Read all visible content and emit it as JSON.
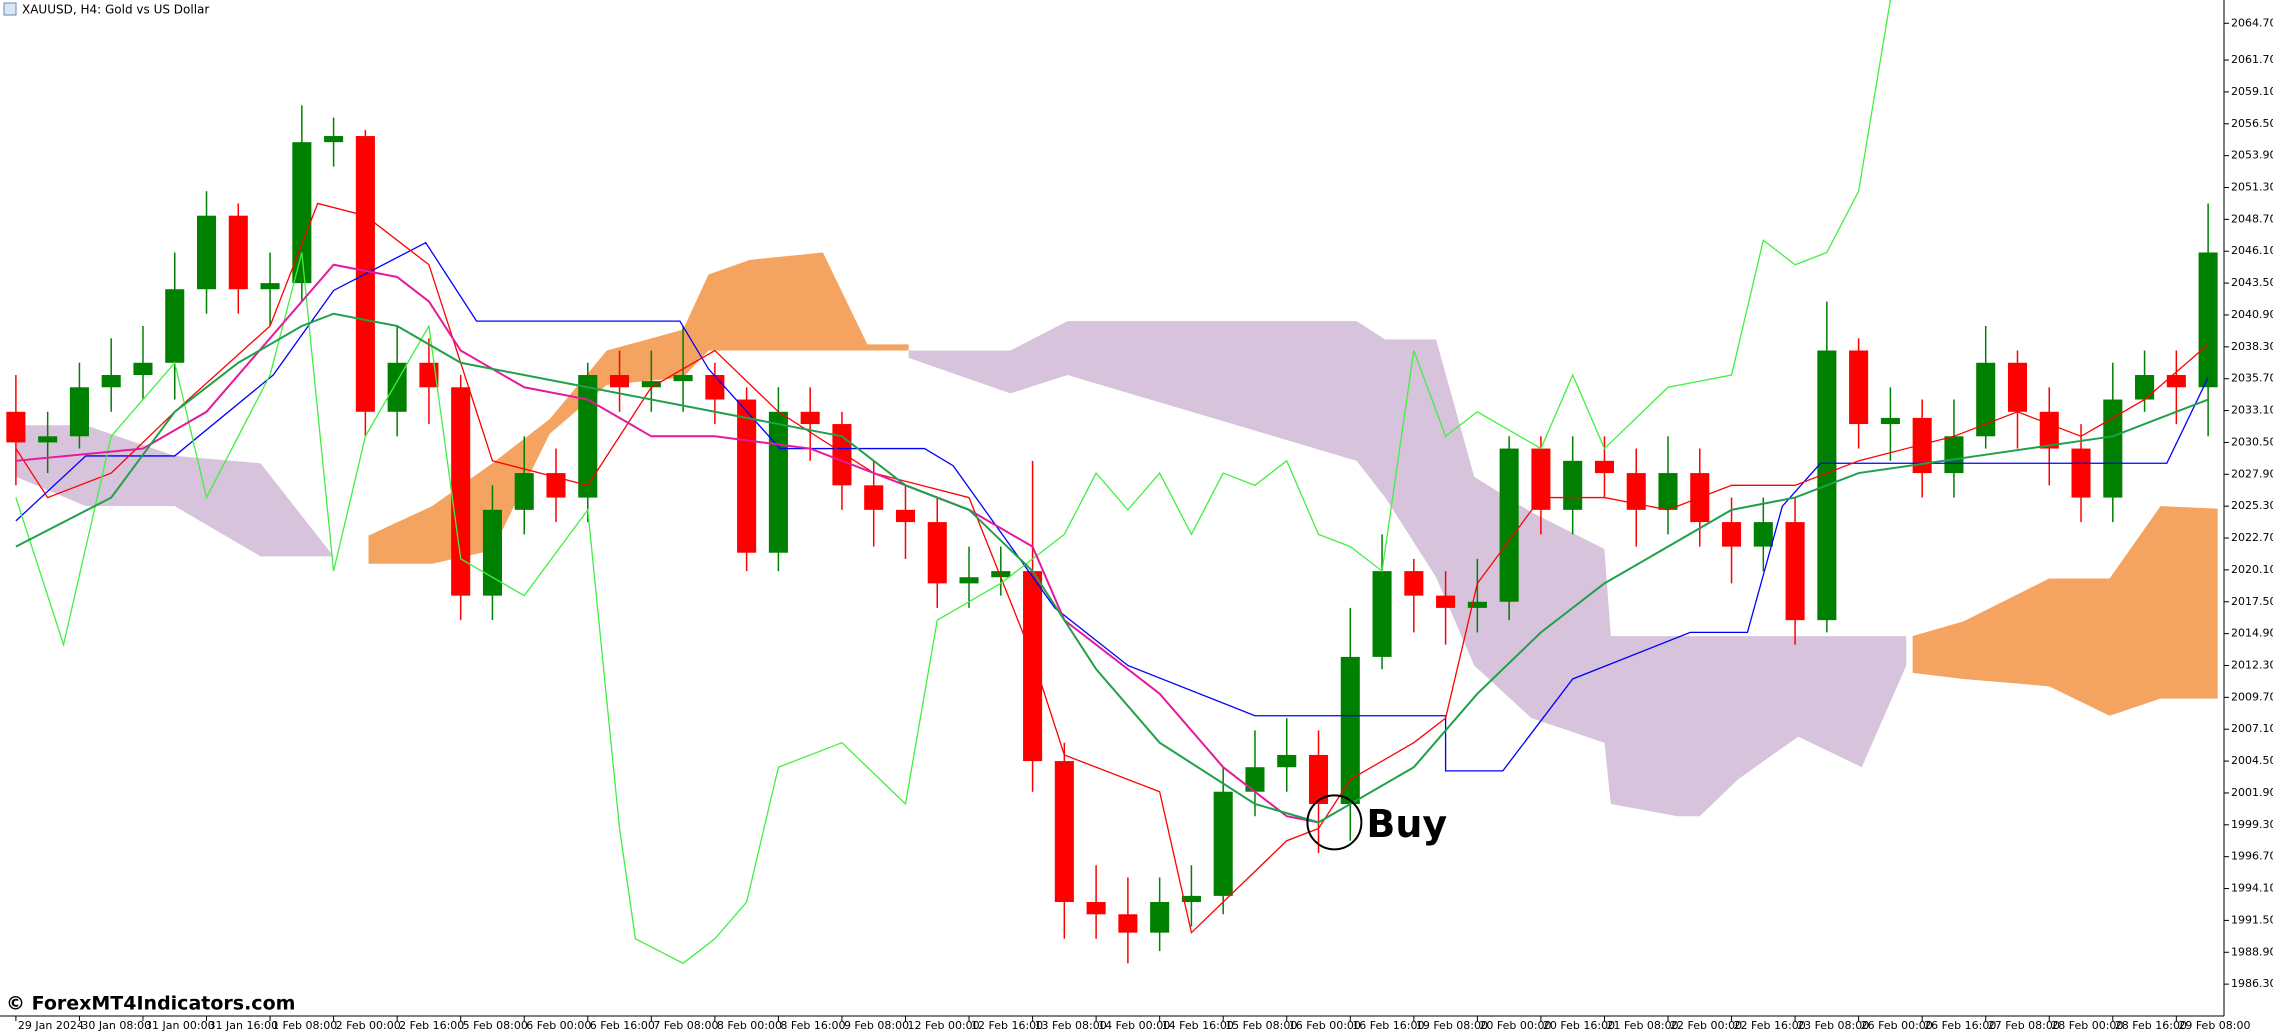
{
  "chart_data": {
    "type": "candlestick",
    "title": "XAUUSD, H4:  Gold vs US Dollar",
    "up_color": "#008000",
    "down_color": "#ff0000",
    "open": [
      2033,
      2030.5,
      2031,
      2035,
      2036,
      2037,
      2043,
      2049,
      2043,
      2043.5,
      2055,
      2055.5,
      2033,
      2037,
      2035,
      2018,
      2025,
      2028,
      2026,
      2036,
      2035,
      2035.5,
      2036,
      2034,
      2021.5,
      2033,
      2032,
      2027,
      2025,
      2024,
      2019,
      2019.5,
      2020,
      2004.5,
      1993,
      1992,
      1990.5,
      1993,
      1993.5,
      2002,
      2004,
      2005,
      2001,
      2013,
      2020,
      2018,
      2017,
      2017.5,
      2030,
      2025,
      2029,
      2028,
      2025,
      2028,
      2024,
      2022,
      2024,
      2016,
      2038,
      2032,
      2032.5,
      2028,
      2031,
      2037,
      2033,
      2030,
      2026,
      2034,
      2036,
      2035
    ],
    "high": [
      2036,
      2033,
      2037,
      2039,
      2040,
      2046,
      2051,
      2050,
      2046,
      2058,
      2057,
      2056,
      2040,
      2039,
      2036,
      2027,
      2031,
      2030,
      2037,
      2038,
      2038,
      2040,
      2037,
      2035,
      2035,
      2035,
      2033,
      2029,
      2027,
      2026,
      2022,
      2022,
      2029,
      2006,
      1996,
      1995,
      1995,
      1996,
      2004,
      2007,
      2008,
      2007,
      2017,
      2023,
      2021,
      2020,
      2021,
      2031,
      2031,
      2031,
      2031,
      2030,
      2031,
      2030,
      2026,
      2026,
      2026,
      2042,
      2039,
      2035,
      2034,
      2034,
      2040,
      2038,
      2035,
      2032,
      2037,
      2038,
      2038,
      2050
    ],
    "low": [
      2027,
      2028,
      2030,
      2033,
      2034,
      2034,
      2041,
      2041,
      2040,
      2042,
      2053,
      2031,
      2031,
      2032,
      2016,
      2016,
      2023,
      2024,
      2024,
      2033,
      2033,
      2033,
      2032,
      2020,
      2020,
      2029,
      2025,
      2022,
      2021,
      2017,
      2017,
      2018,
      2002,
      1990,
      1990,
      1988,
      1989,
      1991,
      1992,
      2000,
      2002,
      1997,
      1998,
      2012,
      2015,
      2014,
      2015,
      2016,
      2023,
      2023,
      2026,
      2022,
      2023,
      2022,
      2019,
      2020,
      2014,
      2015,
      2030,
      2029,
      2026,
      2026,
      2030,
      2030,
      2027,
      2024,
      2024,
      2033,
      2032,
      2031
    ],
    "close": [
      2030.5,
      2031,
      2035,
      2036,
      2037,
      2043,
      2049,
      2043,
      2043.5,
      2055,
      2055.5,
      2033,
      2037,
      2035,
      2018,
      2025,
      2028,
      2026,
      2036,
      2035,
      2035.5,
      2036,
      2034,
      2021.5,
      2033,
      2032,
      2027,
      2025,
      2024,
      2019,
      2019.5,
      2020,
      2004.5,
      1993,
      1992,
      1990.5,
      1993,
      1993.5,
      2002,
      2004,
      2005,
      2001,
      2013,
      2020,
      2018,
      2017,
      2017.5,
      2030,
      2025,
      2029,
      2028,
      2025,
      2028,
      2024,
      2022,
      2024,
      2016,
      2038,
      2032,
      2032.5,
      2028,
      2031,
      2037,
      2033,
      2030,
      2026,
      2034,
      2036,
      2035,
      2046
    ],
    "clouds": [
      {
        "color": "#d8c3dc",
        "x": [
          0,
          2.2,
          5,
          7.7,
          10
        ],
        "upper": [
          2031.9,
          2031.9,
          2029.4,
          2028.8,
          2021.2
        ],
        "lower": [
          2027.7,
          2025.3,
          2025.3,
          2021.2,
          2021.2
        ]
      },
      {
        "color": "#f4a460",
        "x": [
          11.1,
          13.1,
          15,
          16.8,
          18.6,
          21,
          21.8,
          23.1,
          25.4,
          26.8,
          28.1
        ],
        "upper": [
          2022.9,
          2025.3,
          2028.8,
          2032.4,
          2038,
          2039.7,
          2044.2,
          2045.4,
          2046,
          2038.5,
          2038.5
        ],
        "lower": [
          2020.6,
          2020.6,
          2021.7,
          2031.2,
          2035.2,
          2035.8,
          2038,
          2038,
          2038,
          2038,
          2038
        ]
      },
      {
        "color": "#d8c3dc",
        "x": [
          28.1,
          31.3,
          33.1,
          42.2,
          43.1,
          44.7,
          45.9,
          47.7,
          50,
          50.2,
          52.3,
          53,
          54.2,
          56.1,
          58.1,
          59.5
        ],
        "upper": [
          2038,
          2038,
          2040.4,
          2040.4,
          2038.9,
          2038.9,
          2027.7,
          2024.8,
          2021.8,
          2014.7,
          2014.7,
          2014.7,
          2014.7,
          2014.7,
          2014.7,
          2014.7
        ],
        "lower": [
          2037.4,
          2034.5,
          2036,
          2029,
          2026,
          2019.5,
          2012.3,
          2008,
          2006,
          2001,
          2000,
          2000,
          2003,
          2006.5,
          2004,
          2012.3
        ]
      },
      {
        "color": "#f4a460",
        "x": [
          59.7,
          61.3,
          64,
          65.9,
          67.5,
          69.3
        ],
        "upper": [
          2014.7,
          2015.9,
          2019.4,
          2019.4,
          2025.3,
          2025.1
        ],
        "lower": [
          2011.7,
          2011.2,
          2010.6,
          2008.2,
          2009.6,
          2009.6
        ]
      }
    ],
    "lines": [
      {
        "color": "#0000ff",
        "x": [
          0,
          2.2,
          5,
          8.1,
          10,
          12.9,
          14.5,
          20.9,
          21.8,
          24.05,
          28.6,
          29.5,
          32.7,
          35,
          39,
          45,
          45,
          46.8,
          49,
          52.7,
          54.5,
          55.6,
          56.8,
          67.7,
          69
        ],
        "values": [
          2024.1,
          2029.4,
          2029.4,
          2036,
          2042.9,
          2046.8,
          2040.4,
          2040.4,
          2036.5,
          2030,
          2030,
          2028.6,
          2017,
          2012.3,
          2008.2,
          2008.2,
          2003.7,
          2003.7,
          2011.2,
          2015,
          2015,
          2025.3,
          2028.8,
          2028.8,
          2035.8
        ]
      },
      {
        "color": "#ff0000",
        "x": [
          0,
          1,
          3,
          5,
          8,
          9.5,
          11,
          13,
          15,
          18,
          20,
          22,
          24,
          27,
          30,
          32,
          33,
          36,
          37,
          38,
          40,
          41,
          42,
          44,
          45,
          46,
          48,
          50,
          52,
          54,
          56,
          58,
          61,
          63,
          65,
          67,
          69
        ],
        "values": [
          2030,
          2026,
          2028,
          2033,
          2040,
          2050,
          2049,
          2045,
          2029,
          2027,
          2035,
          2038,
          2033,
          2028,
          2026,
          2013,
          2005,
          2002,
          1990.5,
          1993,
          1998,
          1999,
          2003,
          2006,
          2008,
          2019,
          2026,
          2026,
          2025,
          2027,
          2027,
          2029,
          2031,
          2033,
          2031,
          2034,
          2038.5
        ]
      },
      {
        "color": "#40f040",
        "x": [
          0,
          1.5,
          3,
          5,
          6,
          8,
          9,
          10,
          11,
          13,
          14,
          16,
          18,
          19,
          19.5,
          21,
          22,
          23,
          24,
          26,
          28,
          29,
          31,
          33,
          34,
          35,
          36,
          37,
          38,
          39,
          40,
          41,
          42,
          43,
          44,
          45,
          46,
          48,
          49,
          50,
          52,
          54,
          55,
          56,
          57,
          58,
          59
        ],
        "values": [
          2026,
          2014,
          2031,
          2037,
          2026,
          2036,
          2046,
          2020,
          2031,
          2040,
          2021,
          2018,
          2025,
          1999,
          1990,
          1988,
          1990,
          1993,
          2004,
          2006,
          2001,
          2016,
          2019,
          2023,
          2028,
          2025,
          2028,
          2023,
          2028,
          2027,
          2029,
          2023,
          2022,
          2020,
          2038,
          2031,
          2033,
          2030,
          2036,
          2030,
          2035,
          2036,
          2047,
          2045,
          2046,
          2051,
          2066.6
        ]
      },
      {
        "color": "#e6199b",
        "x": [
          0,
          4,
          6,
          8,
          10,
          12,
          13,
          14,
          16,
          18,
          20,
          22,
          25,
          28,
          30,
          32,
          33,
          36,
          38,
          40,
          41
        ],
        "values": [
          2029,
          2030,
          2033,
          2039,
          2045,
          2044,
          2042,
          2038,
          2035,
          2034,
          2031,
          2031,
          2030,
          2027,
          2025,
          2022,
          2016,
          2010,
          2004,
          2000,
          1999.5
        ]
      },
      {
        "color": "#1fa04a",
        "x": [
          0,
          3,
          5,
          7,
          9,
          10,
          12,
          14,
          18,
          22,
          24,
          26,
          28,
          30,
          32,
          34,
          36,
          39,
          41,
          42,
          44,
          46,
          48,
          50,
          52,
          54,
          56,
          58,
          62,
          66,
          69
        ],
        "values": [
          2022,
          2026,
          2033,
          2037,
          2040,
          2041,
          2040,
          2037,
          2035,
          2033,
          2032,
          2031,
          2027,
          2025,
          2020,
          2012,
          2006,
          2001,
          1999.5,
          2001,
          2004,
          2010,
          2015,
          2019,
          2022,
          2025,
          2026,
          2028,
          2029.5,
          2031,
          2034
        ]
      }
    ],
    "annotation": {
      "text": "Buy",
      "x": 41.5,
      "y": 1999.5
    },
    "watermark": "© ForexMT4Indicators.com",
    "xlim": [
      -0.5,
      69.5
    ],
    "ylim": [
      1983.7,
      2066.6
    ],
    "xticks": [
      {
        "value": 0,
        "label": "29 Jan 2024"
      },
      {
        "value": 2,
        "label": "30 Jan 08:00"
      },
      {
        "value": 4,
        "label": "31 Jan 00:00"
      },
      {
        "value": 6,
        "label": "31 Jan 16:00"
      },
      {
        "value": 8,
        "label": "1 Feb 08:00"
      },
      {
        "value": 10,
        "label": "2 Feb 00:00"
      },
      {
        "value": 12,
        "label": "2 Feb 16:00"
      },
      {
        "value": 14,
        "label": "5 Feb 08:00"
      },
      {
        "value": 16,
        "label": "6 Feb 00:00"
      },
      {
        "value": 18,
        "label": "6 Feb 16:00"
      },
      {
        "value": 20,
        "label": "7 Feb 08:00"
      },
      {
        "value": 22,
        "label": "8 Feb 00:00"
      },
      {
        "value": 24,
        "label": "8 Feb 16:00"
      },
      {
        "value": 26,
        "label": "9 Feb 08:00"
      },
      {
        "value": 28,
        "label": "12 Feb 00:00"
      },
      {
        "value": 30,
        "label": "12 Feb 16:00"
      },
      {
        "value": 32,
        "label": "13 Feb 08:00"
      },
      {
        "value": 34,
        "label": "14 Feb 00:00"
      },
      {
        "value": 36,
        "label": "14 Feb 16:00"
      },
      {
        "value": 38,
        "label": "15 Feb 08:00"
      },
      {
        "value": 40,
        "label": "16 Feb 00:00"
      },
      {
        "value": 42,
        "label": "16 Feb 16:00"
      },
      {
        "value": 44,
        "label": "19 Feb 08:00"
      },
      {
        "value": 46,
        "label": "20 Feb 00:00"
      },
      {
        "value": 48,
        "label": "20 Feb 16:00"
      },
      {
        "value": 50,
        "label": "21 Feb 08:00"
      },
      {
        "value": 52,
        "label": "22 Feb 00:00"
      },
      {
        "value": 54,
        "label": "22 Feb 16:00"
      },
      {
        "value": 56,
        "label": "23 Feb 08:00"
      },
      {
        "value": 58,
        "label": "26 Feb 00:00"
      },
      {
        "value": 60,
        "label": "26 Feb 16:00"
      },
      {
        "value": 62,
        "label": "27 Feb 08:00"
      },
      {
        "value": 64,
        "label": "28 Feb 00:00"
      },
      {
        "value": 66,
        "label": "28 Feb 16:00"
      },
      {
        "value": 68,
        "label": "29 Feb 08:00"
      }
    ],
    "yticks": [
      {
        "value": 2064.7,
        "label": "2064.70"
      },
      {
        "value": 2061.7,
        "label": "2061.70"
      },
      {
        "value": 2059.1,
        "label": "2059.10"
      },
      {
        "value": 2056.5,
        "label": "2056.50"
      },
      {
        "value": 2053.9,
        "label": "2053.90"
      },
      {
        "value": 2051.3,
        "label": "2051.30"
      },
      {
        "value": 2048.7,
        "label": "2048.70"
      },
      {
        "value": 2046.1,
        "label": "2046.10"
      },
      {
        "value": 2043.5,
        "label": "2043.50"
      },
      {
        "value": 2040.9,
        "label": "2040.90"
      },
      {
        "value": 2038.3,
        "label": "2038.30"
      },
      {
        "value": 2035.7,
        "label": "2035.70"
      },
      {
        "value": 2033.1,
        "label": "2033.10"
      },
      {
        "value": 2030.5,
        "label": "2030.50"
      },
      {
        "value": 2027.9,
        "label": "2027.90"
      },
      {
        "value": 2025.3,
        "label": "2025.30"
      },
      {
        "value": 2022.7,
        "label": "2022.70"
      },
      {
        "value": 2020.1,
        "label": "2020.10"
      },
      {
        "value": 2017.5,
        "label": "2017.50"
      },
      {
        "value": 2014.9,
        "label": "2014.90"
      },
      {
        "value": 2012.3,
        "label": "2012.30"
      },
      {
        "value": 2009.7,
        "label": "2009.70"
      },
      {
        "value": 2007.1,
        "label": "2007.10"
      },
      {
        "value": 2004.5,
        "label": "2004.50"
      },
      {
        "value": 2001.9,
        "label": "2001.90"
      },
      {
        "value": 1999.3,
        "label": "1999.30"
      },
      {
        "value": 1996.7,
        "label": "1996.70"
      },
      {
        "value": 1994.1,
        "label": "1994.10"
      },
      {
        "value": 1991.5,
        "label": "1991.50"
      },
      {
        "value": 1988.9,
        "label": "1988.90"
      },
      {
        "value": 1986.3,
        "label": "1986.30"
      }
    ]
  }
}
